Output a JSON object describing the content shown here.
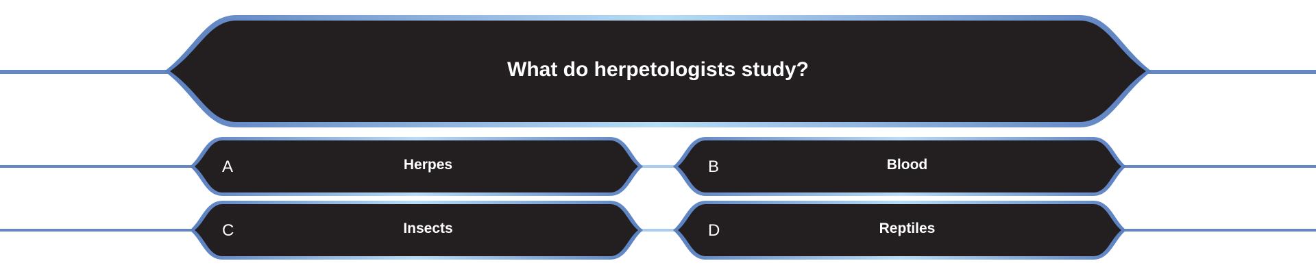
{
  "question": {
    "text": "What do herpetologists study?"
  },
  "answers": [
    {
      "letter": "A",
      "text": "Herpes"
    },
    {
      "letter": "B",
      "text": "Blood"
    },
    {
      "letter": "C",
      "text": "Insects"
    },
    {
      "letter": "D",
      "text": "Reptiles"
    }
  ],
  "colors": {
    "panel": "#231f20",
    "frame": "#6587c2",
    "frame_light": "#b5d9f3",
    "text": "#ffffff"
  }
}
